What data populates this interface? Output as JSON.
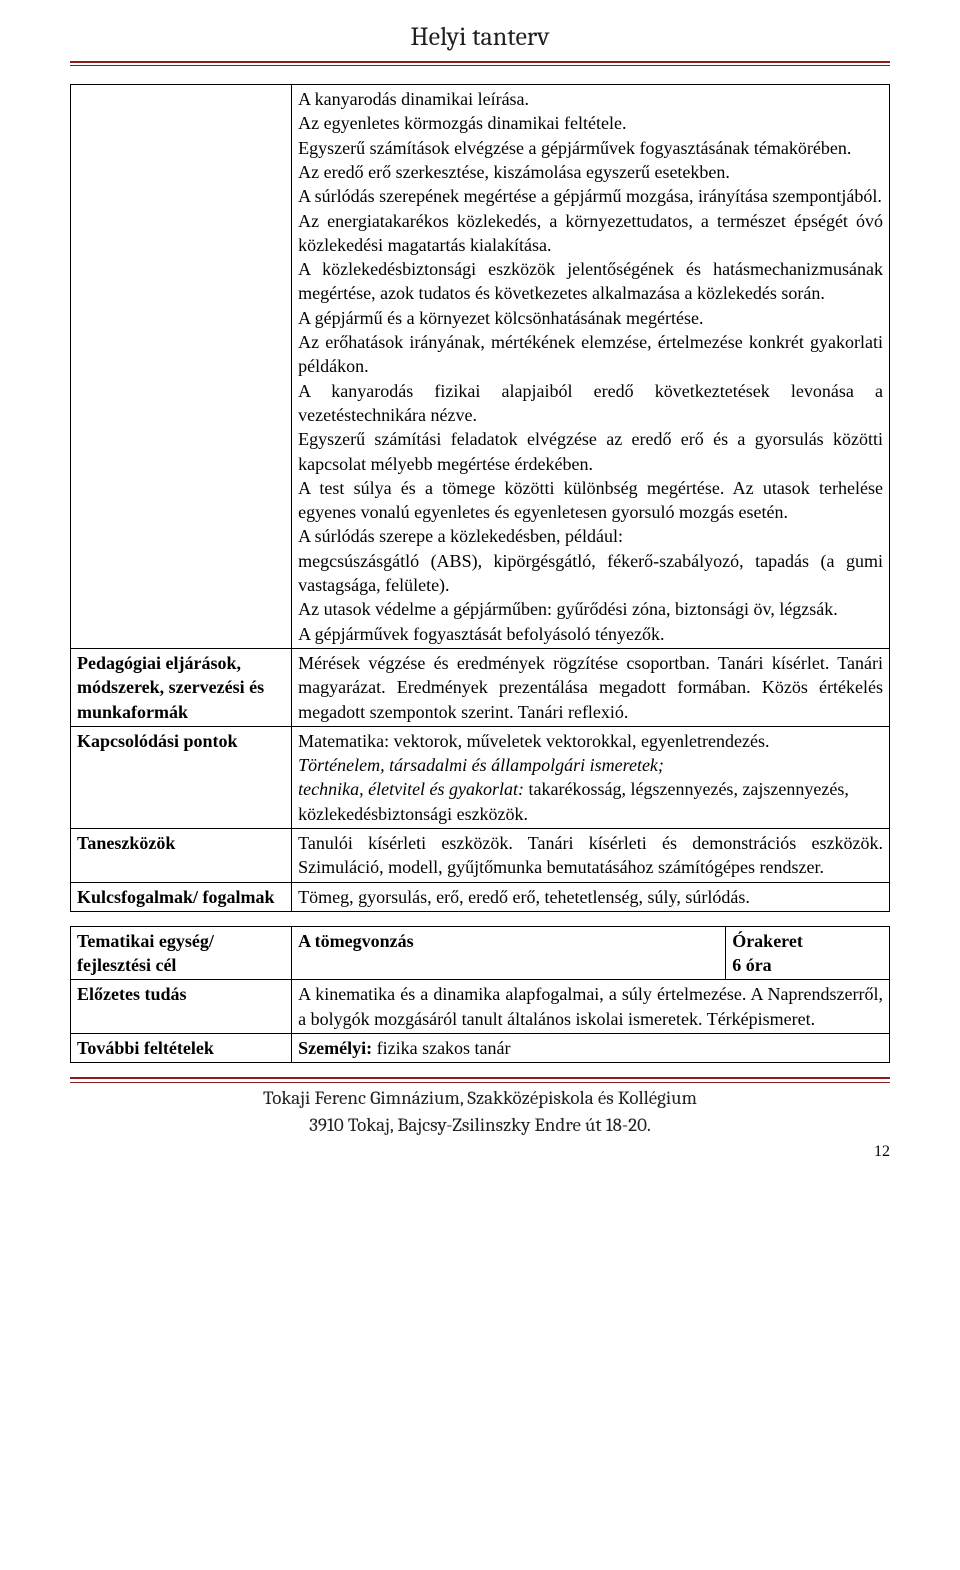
{
  "colors": {
    "rule": "#8b1a1a",
    "text": "#000000",
    "background": "#ffffff"
  },
  "typography": {
    "body_family": "Times New Roman",
    "body_size_pt": 14,
    "title_family": "Cambria",
    "title_size_pt": 20
  },
  "header": {
    "title": "Helyi tanterv"
  },
  "table1": {
    "row1_content": "A kanyarodás dinamikai leírása.\nAz egyenletes körmozgás dinamikai feltétele.\nEgyszerű számítások elvégzése a gépjárművek fogyasztásának témakörében.\nAz eredő erő szerkesztése, kiszámolása egyszerű esetekben.\nA súrlódás szerepének megértése a gépjármű mozgása, irányítása szempontjából.\nAz energiatakarékos közlekedés, a környezettudatos, a természet épségét óvó közlekedési magatartás kialakítása.\nA közlekedésbiztonsági eszközök jelentőségének és hatásmechanizmusának megértése, azok tudatos és következetes alkalmazása a közlekedés során.\nA gépjármű és a környezet kölcsönhatásának megértése.\nAz erőhatások irányának, mértékének elemzése, értelmezése konkrét gyakorlati példákon.\nA kanyarodás fizikai alapjaiból eredő következtetések levonása a vezetéstechnikára nézve.\nEgyszerű számítási feladatok elvégzése az eredő erő és a gyorsulás közötti kapcsolat mélyebb megértése érdekében.\nA test súlya és a tömege közötti különbség megértése. Az utasok terhelése egyenes vonalú egyenletes és egyenletesen gyorsuló mozgás esetén.\nA súrlódás szerepe a közlekedésben, például:\nmegcsúszásgátló (ABS), kipörgésgátló, fékerő-szabályozó, tapadás (a gumi vastagsága, felülete).\nAz utasok védelme a gépjárműben: gyűrődési zóna, biztonsági öv, légzsák.\nA gépjárművek fogyasztását befolyásoló tényezők.",
    "row2_label": "Pedagógiai eljárások, módszerek, szervezési és munkaformák",
    "row2_content": "Mérések végzése és eredmények rögzítése csoportban. Tanári kísérlet. Tanári magyarázat. Eredmények prezentálása megadott formában. Közös értékelés megadott szempontok szerint. Tanári reflexió.",
    "row3_label": "Kapcsolódási pontok",
    "row3_line1": "Matematika: vektorok, műveletek vektorokkal, egyenletrendezés.",
    "row3_line2_italic": "Történelem, társadalmi és állampolgári ismeretek;",
    "row3_line3a_italic": "technika, életvitel és gyakorlat:",
    "row3_line3b": " takarékosság, légszennyezés, zajszennyezés,",
    "row3_line4": "közlekedésbiztonsági eszközök.",
    "row4_label": "Taneszközök",
    "row4_content": "Tanulói kísérleti eszközök. Tanári kísérleti és demonstrációs eszközök. Szimuláció, modell, gyűjtőmunka bemutatásához számítógépes rendszer.",
    "row5_label": "Kulcsfogalmak/ fogalmak",
    "row5_content": "Tömeg, gyorsulás, erő, eredő erő, tehetetlenség, súly, súrlódás."
  },
  "table2": {
    "row1_label": "Tematikai egység/ fejlesztési cél",
    "row1_mid": "A tömegvonzás",
    "row1_right_a": "Órakeret",
    "row1_right_b": "6 óra",
    "row2_label": "Előzetes tudás",
    "row2_content": "A kinematika és a dinamika alapfogalmai, a súly értelmezése. A Naprendszerről, a bolygók mozgásáról tanult általános iskolai ismeretek. Térképismeret.",
    "row3_label": "További feltételek",
    "row3_bold": "Személyi:",
    "row3_rest": " fizika szakos tanár"
  },
  "footer": {
    "line1": "Tokaji Ferenc Gimnázium, Szakközépiskola és Kollégium",
    "line2": "3910 Tokaj, Bajcsy-Zsilinszky Endre út 18-20.",
    "page": "12"
  }
}
